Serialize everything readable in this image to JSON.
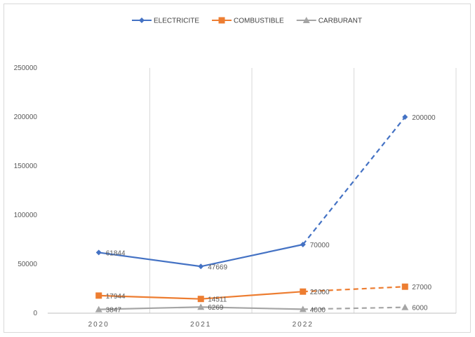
{
  "chart_data": {
    "type": "line",
    "title": "",
    "xlabel": "",
    "ylabel": "",
    "categories": [
      "2020",
      "2021",
      "2022",
      ""
    ],
    "ylim": [
      0,
      250000
    ],
    "yticks": [
      0,
      50000,
      100000,
      150000,
      200000,
      250000
    ],
    "grid": "vertical",
    "legend": "top-center",
    "series": [
      {
        "name": "ELECTRICITE",
        "color": "#4472c4",
        "marker": "diamond",
        "values": [
          61844,
          47669,
          70000,
          200000
        ],
        "labels": [
          "61844",
          "47669",
          "70000",
          "200000"
        ],
        "projected_from_index": 2
      },
      {
        "name": "COMBUSTIBLE",
        "color": "#ed7d31",
        "marker": "square",
        "values": [
          17944,
          14511,
          22000,
          27000
        ],
        "labels": [
          "17944",
          "14511",
          "22000",
          "27000"
        ],
        "projected_from_index": 2
      },
      {
        "name": "CARBURANT",
        "color": "#a5a5a5",
        "marker": "triangle",
        "values": [
          3847,
          6269,
          4000,
          6000
        ],
        "labels": [
          "3847",
          "6269",
          "4000",
          "6000"
        ],
        "projected_from_index": 2
      }
    ]
  }
}
